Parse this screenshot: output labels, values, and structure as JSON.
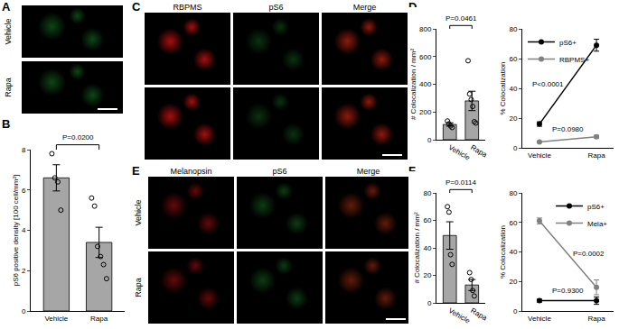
{
  "panel_labels": [
    "A",
    "B",
    "C",
    "D",
    "E",
    "F"
  ],
  "image_panels": [
    {
      "rows": [
        "Vehicle",
        "Rapa"
      ],
      "columns": []
    },
    {
      "rows": [],
      "columns": [
        "RBPMS",
        "pS6",
        "Merge"
      ]
    },
    {
      "rows": [
        "Vehicle",
        "Rapa"
      ],
      "columns": [
        "Melanopsin",
        "pS6",
        "Merge"
      ]
    }
  ],
  "chart_data": [
    {
      "type": "bar",
      "categories": [
        "Vehicle",
        "Rapa"
      ],
      "values": [
        6.6,
        3.4
      ],
      "errors": [
        0.65,
        0.75
      ],
      "points": [
        [
          7.8,
          6.6,
          6.4,
          5.0
        ],
        [
          5.6,
          5.2,
          3.2,
          2.7,
          2.3,
          1.6
        ]
      ],
      "color": "#a6a6a6",
      "y_label": "pS6 positive density [100 cell/mm²]",
      "ylim": [
        0,
        8
      ],
      "yticks": [
        0,
        2,
        4,
        6,
        8
      ],
      "annotation": "P=0.0200",
      "grid": false
    },
    {
      "type": "bar",
      "categories": [
        "Vehicle",
        "Rapa"
      ],
      "values": [
        110,
        280
      ],
      "errors": [
        12,
        70
      ],
      "points": [
        [
          135,
          115,
          100,
          88
        ],
        [
          570,
          330,
          290,
          240,
          130,
          120
        ]
      ],
      "color": "#a6a6a6",
      "y_label": "# Colocalization / mm²",
      "ylim": [
        0,
        800
      ],
      "yticks": [
        0,
        200,
        400,
        600,
        800
      ],
      "annotation": "P=0.0461",
      "grid": false
    },
    {
      "type": "line",
      "categories": [
        "Vehicle",
        "Rapa"
      ],
      "y_label": "% Colocalization",
      "ylim": [
        0,
        80
      ],
      "yticks": [
        0,
        20,
        40,
        60,
        80
      ],
      "legend": "top left",
      "grid": false,
      "marker": "circle",
      "series": [
        {
          "name": "pS6+",
          "color": "#000000",
          "values": [
            16,
            69
          ],
          "errors": [
            1.5,
            4
          ],
          "annotation": "P<0.0001"
        },
        {
          "name": "RBPMS+",
          "color": "#808080",
          "values": [
            4,
            7.5
          ],
          "errors": [
            0.5,
            1
          ],
          "annotation": "P=0.0980"
        }
      ]
    },
    {
      "type": "bar",
      "categories": [
        "Vehicle",
        "Rapa"
      ],
      "values": [
        49,
        13
      ],
      "errors": [
        10,
        4
      ],
      "points": [
        [
          70,
          66,
          35,
          28
        ],
        [
          22,
          17,
          9,
          5
        ]
      ],
      "color": "#a6a6a6",
      "y_label": "# Colocalization / mm²",
      "ylim": [
        0,
        80
      ],
      "yticks": [
        0,
        20,
        40,
        60,
        80
      ],
      "annotation": "P=0.0114",
      "grid": false
    },
    {
      "type": "line",
      "categories": [
        "Vehicle",
        "Rapa"
      ],
      "y_label": "% Colocalization",
      "ylim": [
        0,
        80
      ],
      "yticks": [
        0,
        20,
        40,
        60,
        80
      ],
      "legend": "top right",
      "grid": false,
      "marker": "circle",
      "series": [
        {
          "name": "pS6+",
          "color": "#000000",
          "values": [
            7,
            7
          ],
          "errors": [
            1,
            2.5
          ],
          "annotation": "P=0.9300"
        },
        {
          "name": "Mela+",
          "color": "#808080",
          "values": [
            61,
            16
          ],
          "errors": [
            2,
            5
          ],
          "annotation": "P=0.0002"
        }
      ]
    }
  ]
}
